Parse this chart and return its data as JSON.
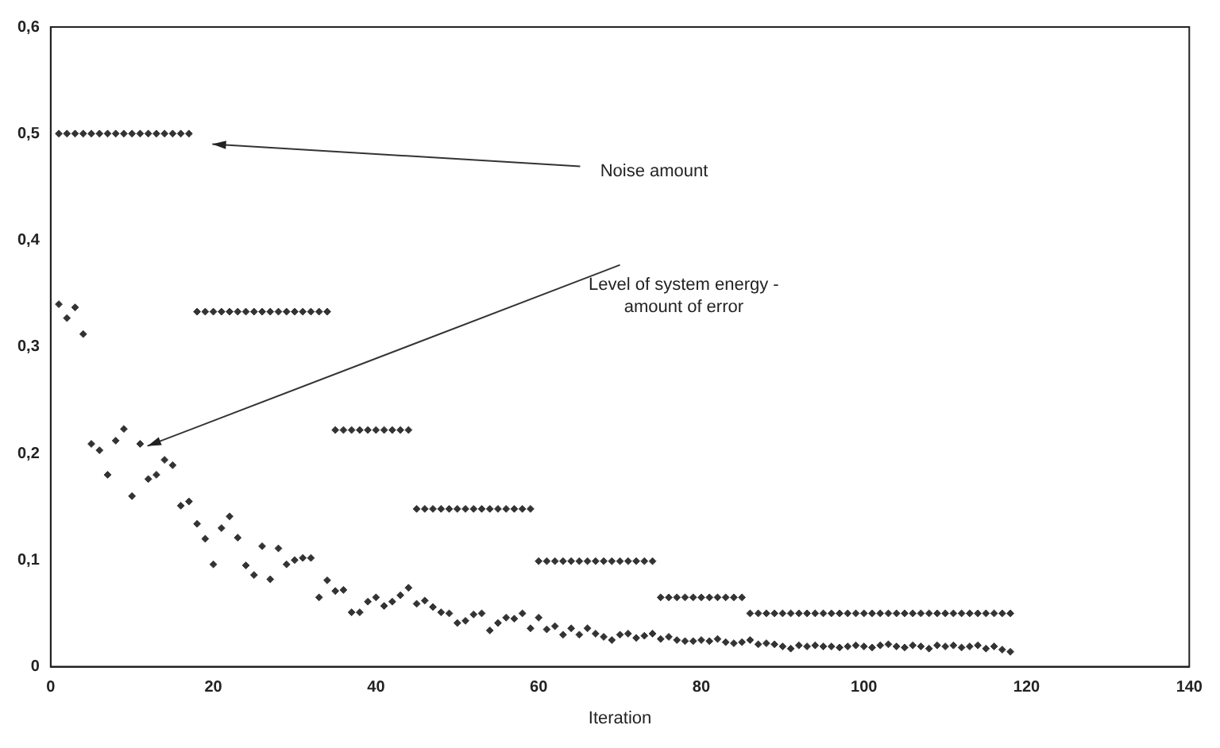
{
  "chart_data": {
    "type": "scatter",
    "xlabel": "Iteration",
    "xlim": [
      0,
      140
    ],
    "xticks": [
      0,
      20,
      40,
      60,
      80,
      100,
      120,
      140
    ],
    "ylim": [
      0,
      0.6
    ],
    "yticks": [
      0,
      {
        "value": 0.1,
        "label": "0,1"
      },
      {
        "value": 0.2,
        "label": "0,2"
      },
      {
        "value": 0.3,
        "label": "0,3"
      },
      {
        "value": 0.4,
        "label": "0,4"
      },
      {
        "value": 0.5,
        "label": "0,5"
      },
      {
        "value": 0.6,
        "label": "0,6"
      }
    ],
    "grid": false,
    "legend": false,
    "marker": "diamond",
    "series": [
      {
        "color": "#333333",
        "x": [
          1,
          2,
          3,
          4,
          5,
          6,
          7,
          8,
          9,
          10,
          11,
          12,
          13,
          14,
          15,
          16,
          17,
          18,
          19,
          20,
          21,
          22,
          23,
          24,
          25,
          26,
          27,
          28,
          29,
          30,
          31,
          32,
          33,
          34,
          35,
          36,
          37,
          38,
          39,
          40,
          41,
          42,
          43,
          44,
          45,
          46,
          47,
          48,
          49,
          50,
          51,
          52,
          53,
          54,
          55,
          56,
          57,
          58,
          59,
          60,
          61,
          62,
          63,
          64,
          65,
          66,
          67,
          68,
          69,
          70,
          71,
          72,
          73,
          74,
          75,
          76,
          77,
          78,
          79,
          80,
          81,
          82,
          83,
          84,
          85,
          86,
          87,
          88,
          89,
          90,
          91,
          92,
          93,
          94,
          95,
          96,
          97,
          98,
          99,
          100,
          101,
          102,
          103,
          104,
          105,
          106,
          107,
          108,
          109,
          110,
          111,
          112,
          113,
          114,
          115,
          116,
          117,
          118
        ],
        "values": [
          0.5,
          0.5,
          0.5,
          0.5,
          0.5,
          0.5,
          0.5,
          0.5,
          0.5,
          0.5,
          0.5,
          0.5,
          0.5,
          0.5,
          0.5,
          0.5,
          0.5,
          0.333,
          0.333,
          0.333,
          0.333,
          0.333,
          0.333,
          0.333,
          0.333,
          0.333,
          0.333,
          0.333,
          0.333,
          0.333,
          0.333,
          0.333,
          0.333,
          0.333,
          0.222,
          0.222,
          0.222,
          0.222,
          0.222,
          0.222,
          0.222,
          0.222,
          0.222,
          0.222,
          0.148,
          0.148,
          0.148,
          0.148,
          0.148,
          0.148,
          0.148,
          0.148,
          0.148,
          0.148,
          0.148,
          0.148,
          0.148,
          0.148,
          0.148,
          0.099,
          0.099,
          0.099,
          0.099,
          0.099,
          0.099,
          0.099,
          0.099,
          0.099,
          0.099,
          0.099,
          0.099,
          0.099,
          0.099,
          0.099,
          0.065,
          0.065,
          0.065,
          0.065,
          0.065,
          0.065,
          0.065,
          0.065,
          0.065,
          0.065,
          0.065,
          0.05,
          0.05,
          0.05,
          0.05,
          0.05,
          0.05,
          0.05,
          0.05,
          0.05,
          0.05,
          0.05,
          0.05,
          0.05,
          0.05,
          0.05,
          0.05,
          0.05,
          0.05,
          0.05,
          0.05,
          0.05,
          0.05,
          0.05,
          0.05,
          0.05,
          0.05,
          0.05,
          0.05,
          0.05,
          0.05,
          0.05,
          0.05,
          0.05
        ]
      },
      {
        "color": "#333333",
        "x": [
          1,
          2,
          3,
          4,
          5,
          6,
          7,
          8,
          9,
          10,
          11,
          12,
          13,
          14,
          15,
          16,
          17,
          18,
          19,
          20,
          21,
          22,
          23,
          24,
          25,
          26,
          27,
          28,
          29,
          30,
          31,
          32,
          33,
          34,
          35,
          36,
          37,
          38,
          39,
          40,
          41,
          42,
          43,
          44,
          45,
          46,
          47,
          48,
          49,
          50,
          51,
          52,
          53,
          54,
          55,
          56,
          57,
          58,
          59,
          60,
          61,
          62,
          63,
          64,
          65,
          66,
          67,
          68,
          69,
          70,
          71,
          72,
          73,
          74,
          75,
          76,
          77,
          78,
          79,
          80,
          81,
          82,
          83,
          84,
          85,
          86,
          87,
          88,
          89,
          90,
          91,
          92,
          93,
          94,
          95,
          96,
          97,
          98,
          99,
          100,
          101,
          102,
          103,
          104,
          105,
          106,
          107,
          108,
          109,
          110,
          111,
          112,
          113,
          114,
          115,
          116,
          117,
          118
        ],
        "values": [
          0.34,
          0.327,
          0.337,
          0.312,
          0.209,
          0.203,
          0.18,
          0.212,
          0.223,
          0.16,
          0.209,
          0.176,
          0.18,
          0.194,
          0.189,
          0.151,
          0.155,
          0.134,
          0.12,
          0.096,
          0.13,
          0.141,
          0.121,
          0.095,
          0.086,
          0.113,
          0.082,
          0.111,
          0.096,
          0.1,
          0.102,
          0.102,
          0.065,
          0.081,
          0.071,
          0.072,
          0.051,
          0.051,
          0.061,
          0.065,
          0.057,
          0.061,
          0.067,
          0.074,
          0.059,
          0.062,
          0.056,
          0.051,
          0.05,
          0.041,
          0.043,
          0.049,
          0.05,
          0.034,
          0.041,
          0.046,
          0.045,
          0.05,
          0.036,
          0.046,
          0.035,
          0.038,
          0.03,
          0.036,
          0.03,
          0.036,
          0.031,
          0.028,
          0.025,
          0.03,
          0.031,
          0.027,
          0.029,
          0.031,
          0.026,
          0.028,
          0.025,
          0.024,
          0.024,
          0.025,
          0.024,
          0.026,
          0.023,
          0.022,
          0.023,
          0.025,
          0.021,
          0.022,
          0.021,
          0.019,
          0.017,
          0.02,
          0.019,
          0.02,
          0.019,
          0.019,
          0.018,
          0.019,
          0.02,
          0.019,
          0.018,
          0.02,
          0.021,
          0.019,
          0.018,
          0.02,
          0.019,
          0.017,
          0.02,
          0.019,
          0.02,
          0.018,
          0.019,
          0.02,
          0.017,
          0.019,
          0.016,
          0.014
        ]
      }
    ],
    "annotations": [
      "Noise amount",
      "Level of system energy -\namount of error"
    ]
  }
}
